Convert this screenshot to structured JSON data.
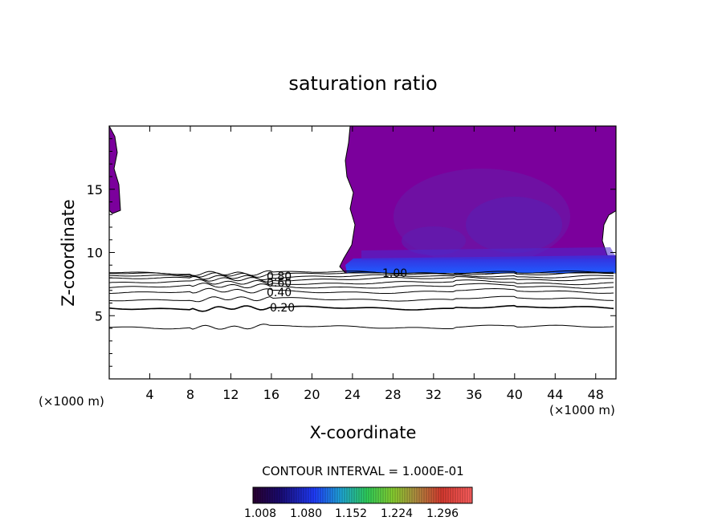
{
  "chart_data": {
    "type": "contour",
    "title": "saturation ratio",
    "xlabel": "X-coordinate",
    "ylabel": "Z-coordinate",
    "x_unit": "(×1000 m)",
    "xlim": [
      0,
      50
    ],
    "ylim": [
      0,
      20
    ],
    "x_ticks": [
      4,
      8,
      12,
      16,
      20,
      24,
      28,
      32,
      36,
      40,
      44,
      48
    ],
    "y_ticks": [
      5,
      10,
      15
    ],
    "contour_levels_labeled": [
      "1.00",
      "0.80",
      "0.60",
      "0.40",
      "0.20"
    ],
    "contour_lines": [
      {
        "level": 0.2,
        "z": 5.6
      },
      {
        "level": 0.3,
        "z": 6.3
      },
      {
        "level": 0.4,
        "z": 6.9
      },
      {
        "level": 0.5,
        "z": 7.3
      },
      {
        "level": 0.6,
        "z": 7.6
      },
      {
        "level": 0.7,
        "z": 7.9
      },
      {
        "level": 0.8,
        "z": 8.1
      },
      {
        "level": 0.9,
        "z": 8.3
      },
      {
        "level": 1.0,
        "z": 8.4
      },
      {
        "level": 0.1,
        "z": 4.1
      }
    ],
    "contour_interval_text": "CONTOUR INTERVAL = 1.000E-01",
    "colorbar": {
      "ticks": [
        "1.008",
        "1.080",
        "1.152",
        "1.224",
        "1.296"
      ],
      "range": [
        1.0,
        1.33
      ]
    },
    "supersaturated_region": {
      "x_start": 23,
      "x_end": 50,
      "z_bottom": 8.4,
      "z_top": 20
    },
    "colors": {
      "dark_purple": "#7b009c",
      "mid_purple": "#6a1aa6",
      "blue": "#1f3cff",
      "light_blue": "#2f7bff"
    }
  }
}
